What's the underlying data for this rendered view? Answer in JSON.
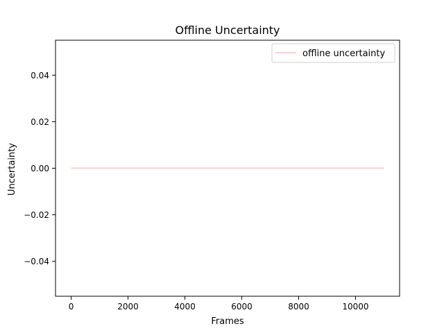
{
  "chart_data": {
    "type": "line",
    "title": "Offline Uncertainty",
    "xlabel": "Frames",
    "ylabel": "Uncertainty",
    "xlim": [
      -550,
      11550
    ],
    "ylim": [
      -0.055,
      0.055
    ],
    "xticks": [
      0,
      2000,
      4000,
      6000,
      8000,
      10000
    ],
    "xtick_labels": [
      "0",
      "2000",
      "4000",
      "6000",
      "8000",
      "10000"
    ],
    "yticks": [
      -0.04,
      -0.02,
      0.0,
      0.02,
      0.04
    ],
    "ytick_labels": [
      "−0.04",
      "−0.02",
      "0.00",
      "0.02",
      "0.04"
    ],
    "grid": false,
    "legend_position": "top-right",
    "series": [
      {
        "name": "offline uncertainty",
        "color": "#ffcccc",
        "x": [
          0,
          11000
        ],
        "y": [
          0.0,
          0.0
        ]
      }
    ]
  }
}
